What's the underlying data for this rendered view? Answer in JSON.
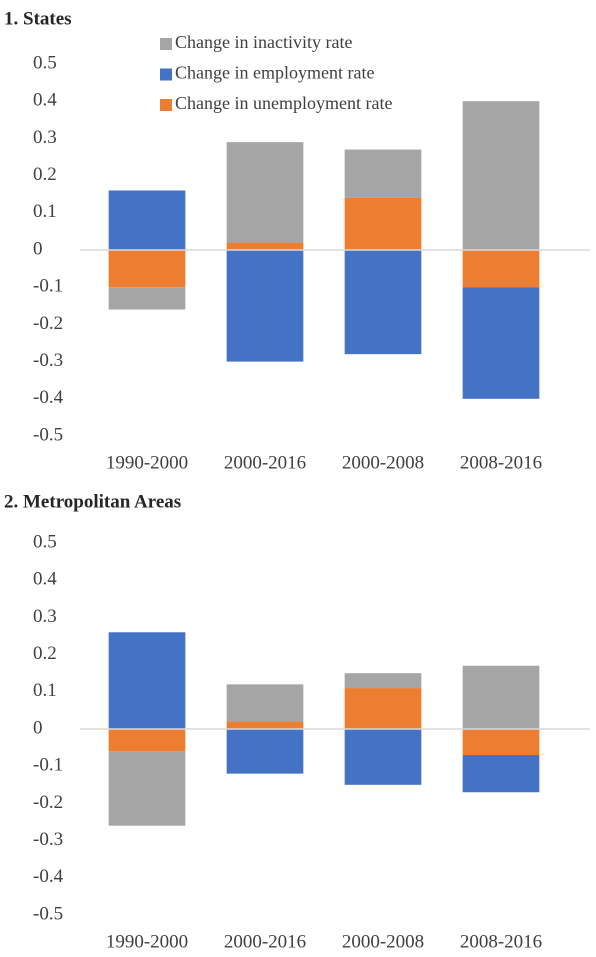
{
  "chart_data": [
    {
      "type": "bar",
      "stacked": true,
      "title": "1. States",
      "categories": [
        "1990-2000",
        "2000-2016",
        "2000-2008",
        "2008-2016"
      ],
      "series": [
        {
          "name": "Change in inactivity rate",
          "color": "#a5a5a5",
          "values": [
            -0.06,
            0.27,
            0.13,
            0.4
          ]
        },
        {
          "name": "Change in employment rate",
          "color": "#4472c4",
          "values": [
            0.16,
            -0.3,
            -0.28,
            -0.3
          ]
        },
        {
          "name": "Change in unemployment rate",
          "color": "#ed7d31",
          "values": [
            -0.1,
            0.02,
            0.14,
            -0.1
          ]
        }
      ],
      "ylim": [
        -0.5,
        0.5
      ],
      "yticks": [
        -0.5,
        -0.4,
        -0.3,
        -0.2,
        -0.1,
        0,
        0.1,
        0.2,
        0.3,
        0.4,
        0.5
      ],
      "grid": false,
      "legend": "top"
    },
    {
      "type": "bar",
      "stacked": true,
      "title": "2. Metropolitan  Areas",
      "categories": [
        "1990-2000",
        "2000-2016",
        "2000-2008",
        "2008-2016"
      ],
      "series": [
        {
          "color": "#a5a5a5",
          "values": [
            -0.2,
            0.1,
            0.04,
            0.17
          ]
        },
        {
          "color": "#4472c4",
          "values": [
            0.26,
            -0.12,
            -0.15,
            -0.1
          ]
        },
        {
          "color": "#ed7d31",
          "values": [
            -0.06,
            0.02,
            0.11,
            -0.07
          ]
        }
      ],
      "ylim": [
        -0.5,
        0.5
      ],
      "yticks": [
        -0.5,
        -0.4,
        -0.3,
        -0.2,
        -0.1,
        0,
        0.1,
        0.2,
        0.3,
        0.4,
        0.5
      ],
      "grid": false,
      "legend": false
    }
  ]
}
